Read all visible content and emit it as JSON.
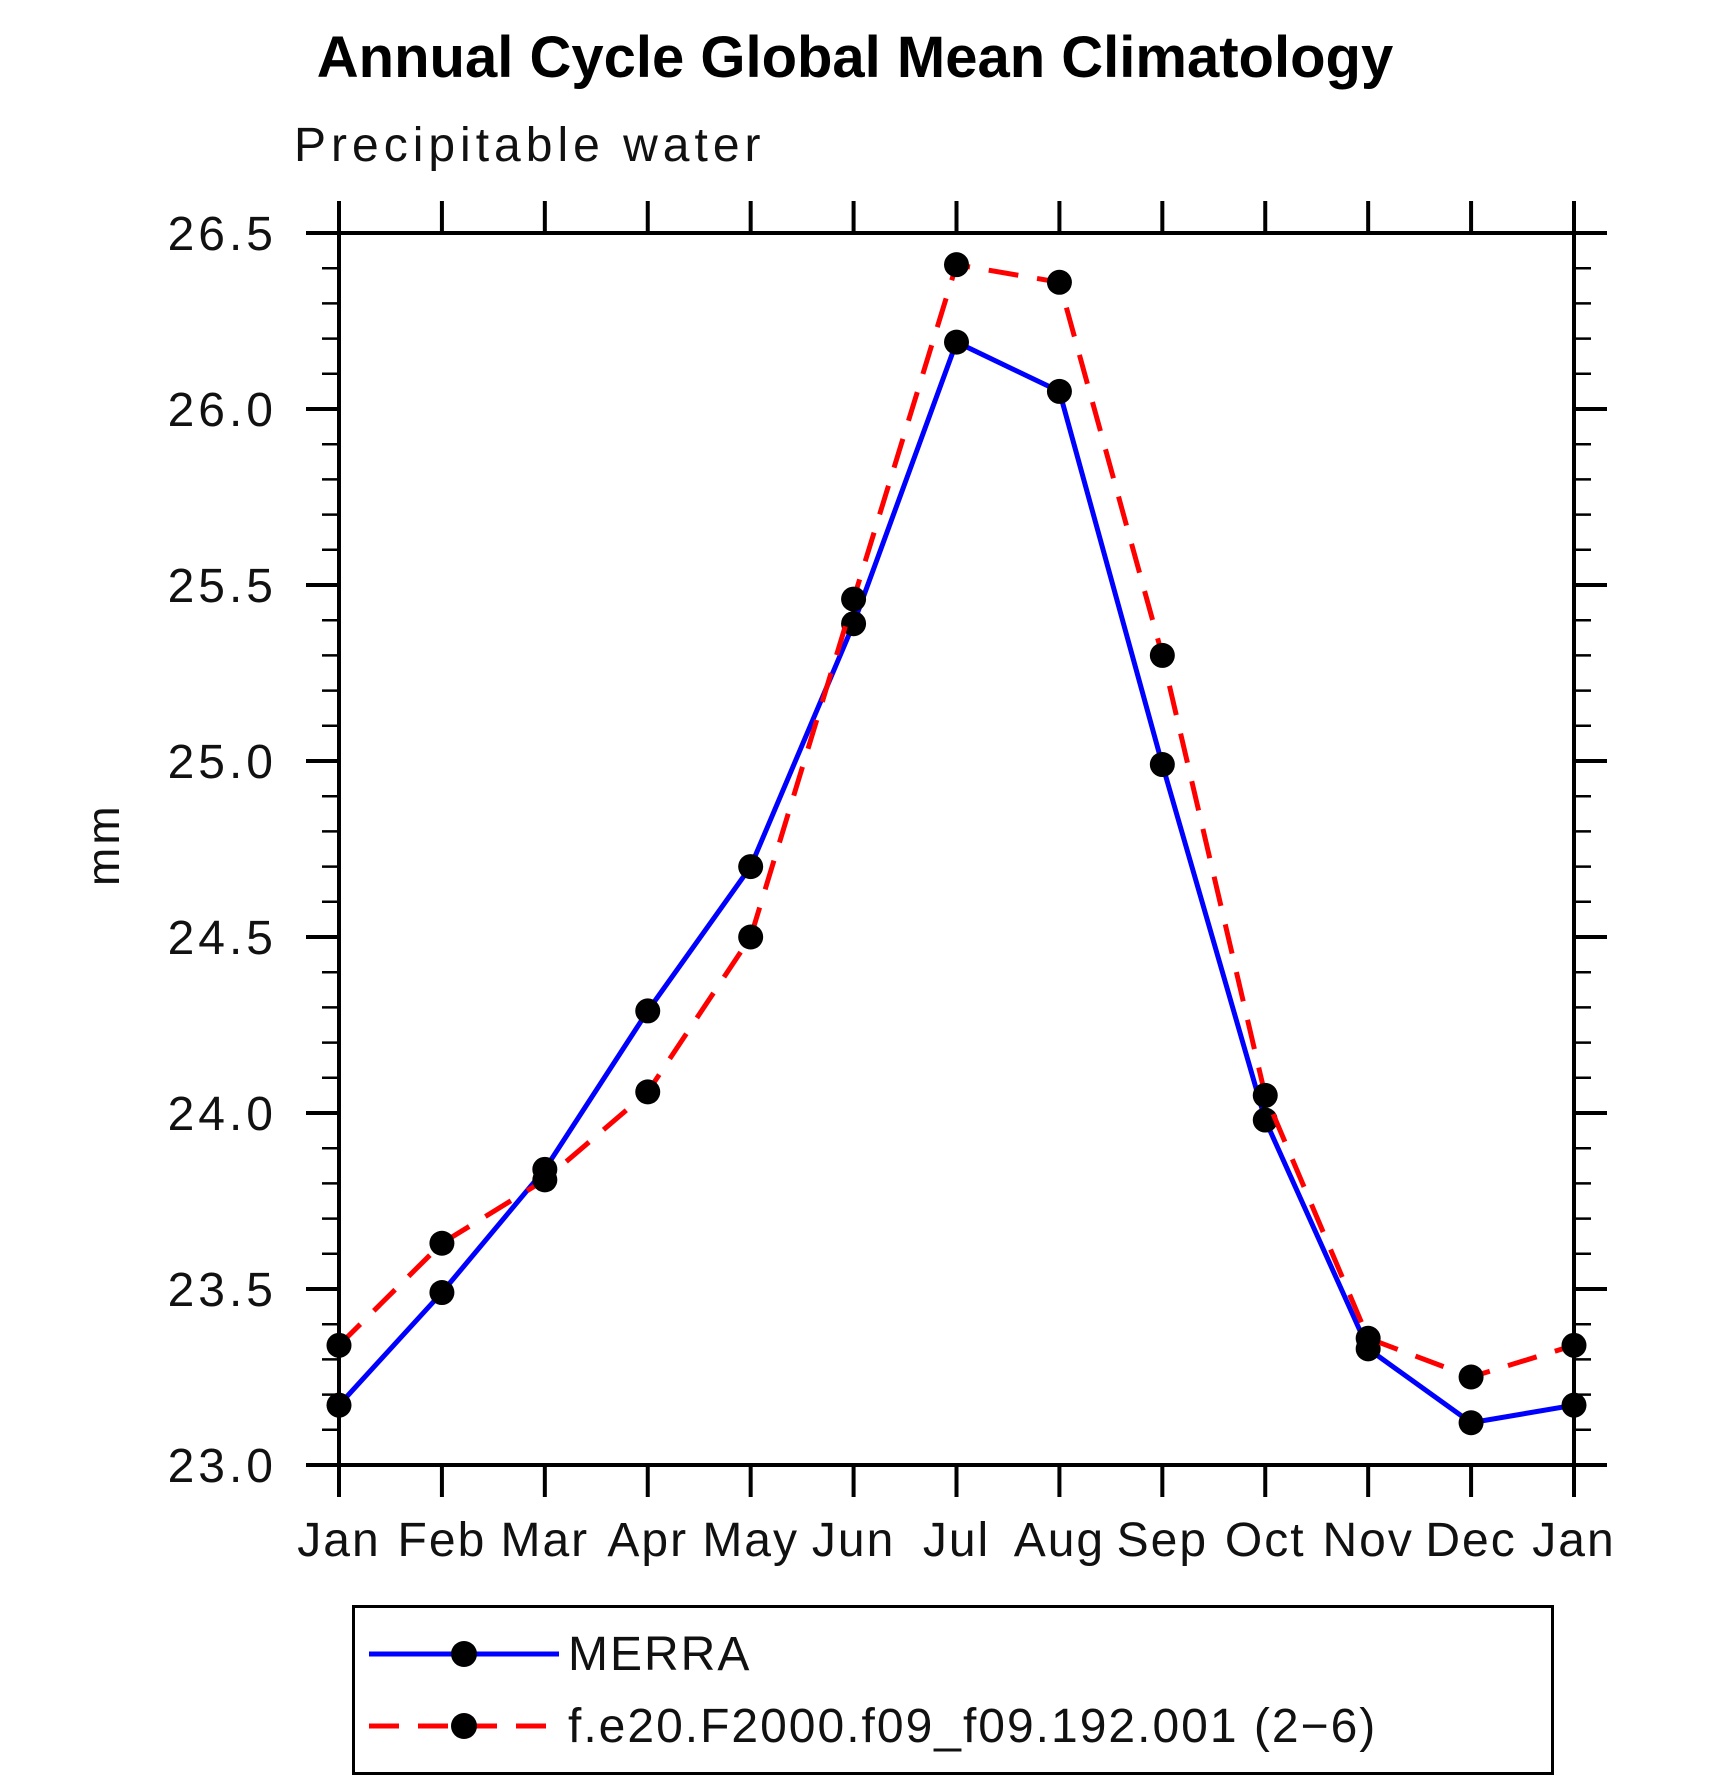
{
  "chart_data": {
    "type": "line",
    "title": "Annual Cycle Global Mean Climatology",
    "subtitle": "Precipitable water",
    "ylabel": "mm",
    "categories": [
      "Jan",
      "Feb",
      "Mar",
      "Apr",
      "May",
      "Jun",
      "Jul",
      "Aug",
      "Sep",
      "Oct",
      "Nov",
      "Dec",
      "Jan"
    ],
    "ylim": [
      23.0,
      26.5
    ],
    "yticks": [
      23.0,
      23.5,
      24.0,
      24.5,
      25.0,
      25.5,
      26.0,
      26.5
    ],
    "yticklabels": [
      "23.0",
      "23.5",
      "24.0",
      "24.5",
      "25.0",
      "25.5",
      "26.0",
      "26.5"
    ],
    "minor_tick_step": 0.1,
    "grid": false,
    "legend_position": "bottom",
    "series": [
      {
        "name": "MERRA",
        "color": "#0000ff",
        "line_style": "solid",
        "marker": "filled-circle",
        "marker_color": "#000000",
        "values": [
          23.17,
          23.49,
          23.84,
          24.29,
          24.7,
          25.39,
          26.19,
          26.05,
          24.99,
          23.98,
          23.33,
          23.12,
          23.17
        ]
      },
      {
        "name": "f.e20.F2000.f09_f09.192.001 (2−6)",
        "color": "#ff0000",
        "line_style": "dashed",
        "marker": "filled-circle",
        "marker_color": "#000000",
        "values": [
          23.34,
          23.63,
          23.81,
          24.06,
          24.5,
          25.46,
          26.41,
          26.36,
          25.3,
          24.05,
          23.36,
          23.25,
          23.34
        ]
      }
    ]
  }
}
